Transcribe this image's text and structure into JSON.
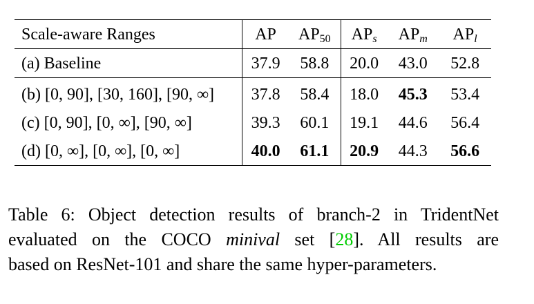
{
  "table": {
    "header": {
      "label": "Scale-aware Ranges",
      "ap": "AP",
      "ap50_base": "AP",
      "ap50_sub": "50",
      "aps_base": "AP",
      "aps_sub": "s",
      "apm_base": "AP",
      "apm_sub": "m",
      "apl_base": "AP",
      "apl_sub": "l"
    },
    "rows": [
      {
        "label": "(a) Baseline",
        "ap": "37.9",
        "ap50": "58.8",
        "aps": "20.0",
        "apm": "43.0",
        "apl": "52.8"
      },
      {
        "label": "(b) [0, 90], [30, 160], [90, ∞]",
        "ap": "37.8",
        "ap50": "58.4",
        "aps": "18.0",
        "apm": "45.3",
        "apl": "53.4"
      },
      {
        "label": "(c) [0, 90],   [0, ∞],   [90, ∞]",
        "ap": "39.3",
        "ap50": "60.1",
        "aps": "19.1",
        "apm": "44.6",
        "apl": "56.4"
      },
      {
        "label": "(d) [0, ∞],   [0, ∞],   [0, ∞]",
        "ap": "40.0",
        "ap50": "61.1",
        "aps": "20.9",
        "apm": "44.3",
        "apl": "56.6"
      }
    ]
  },
  "caption": {
    "line1": "Table 6: Object detection results of branch-2 in TridentNet",
    "line2_pre": "evaluated on the COCO ",
    "line2_italic": "minival",
    "line2_mid": " set [",
    "line2_cite": "28",
    "line2_post": "].  All results are",
    "line3": "based on ResNet-101 and share the same hyper-parameters."
  }
}
